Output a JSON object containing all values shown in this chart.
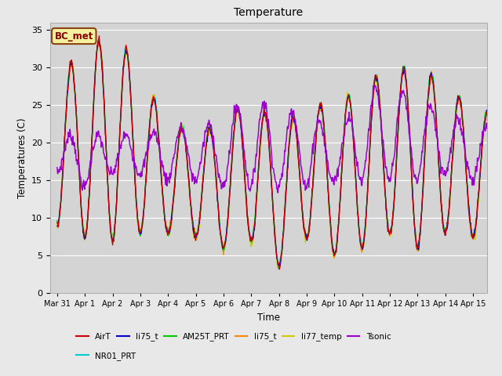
{
  "title": "Temperature",
  "ylabel": "Temperatures (C)",
  "xlabel": "Time",
  "ylim": [
    0,
    36
  ],
  "background_color": "#e8e8e8",
  "plot_bg_color": "#d4d4d4",
  "grid_color": "white",
  "annotation_text": "BC_met",
  "annotation_color": "#8B0000",
  "annotation_bg": "#f5f0a0",
  "annotation_edge": "#8B4513",
  "legend_labels": [
    "AirT",
    "li75_t",
    "AM25T_PRT",
    "li75_t",
    "li77_temp",
    "Tsonic",
    "NR01_PRT"
  ],
  "legend_colors": [
    "#cc0000",
    "#0000cc",
    "#00cc00",
    "#ff8800",
    "#cccc00",
    "#9900cc",
    "#00cccc"
  ],
  "tick_labels": [
    "Mar 31",
    "Apr 1",
    "Apr 2",
    "Apr 3",
    "Apr 4",
    "Apr 5",
    "Apr 6",
    "Apr 7",
    "Apr 8",
    "Apr 9",
    "Apr 10",
    "Apr 11",
    "Apr 12",
    "Apr 13",
    "Apr 14",
    "Apr 15"
  ],
  "yticks": [
    0,
    5,
    10,
    15,
    20,
    25,
    30,
    35
  ],
  "daily_maxima": [
    29,
    32,
    35,
    29.5,
    22,
    22,
    22,
    27,
    21,
    25.5,
    24.5,
    28,
    29.5,
    30,
    28,
    24
  ],
  "daily_minima": [
    9,
    7.5,
    7,
    8,
    8,
    7.5,
    6,
    7,
    3.5,
    7.5,
    5,
    6,
    8,
    6,
    8,
    7.5
  ],
  "tsonic_maxima": [
    21,
    21,
    21,
    21,
    22,
    22,
    23,
    27,
    23.5,
    25.5,
    20,
    27,
    27.5,
    26,
    24,
    22
  ],
  "tsonic_minima": [
    16,
    14,
    16,
    16,
    15,
    15,
    14,
    14,
    14,
    14,
    15,
    15,
    15,
    15,
    16,
    15
  ]
}
